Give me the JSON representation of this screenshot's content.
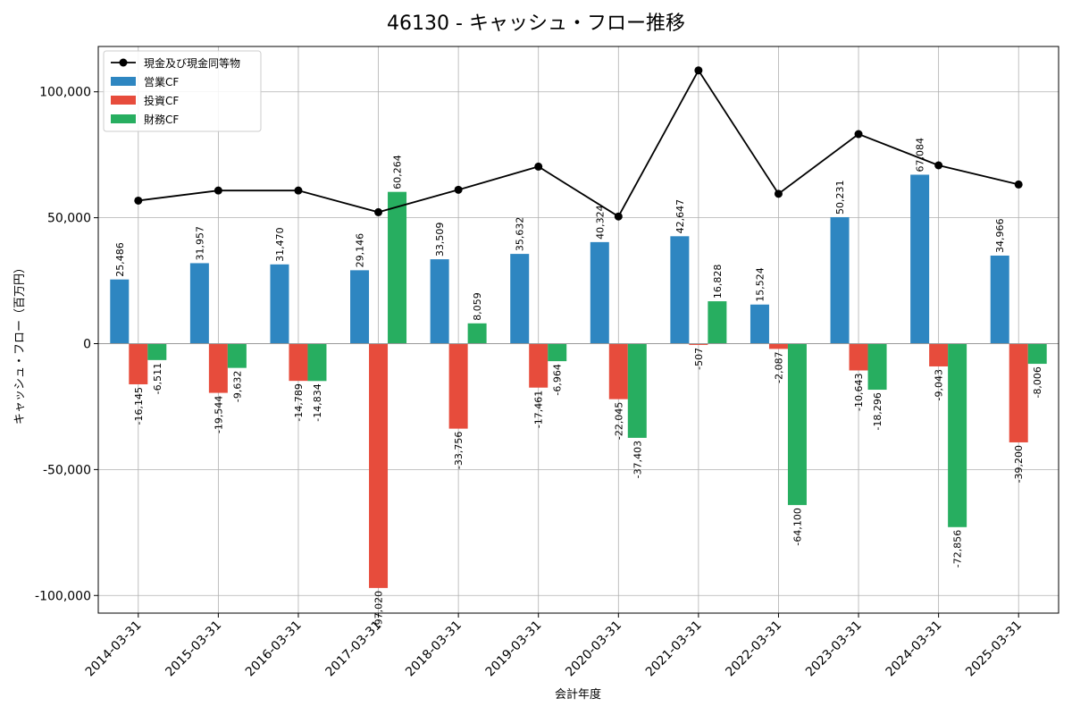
{
  "chart_data": {
    "type": "bar",
    "title": "46130 - キャッシュ・フロー推移",
    "xlabel": "会計年度",
    "ylabel": "キャッシュ・フロー（百万円）",
    "ylim": [
      -107000,
      118000
    ],
    "yticks": [
      -100000,
      -50000,
      0,
      50000,
      100000
    ],
    "ytick_labels": [
      "-100,000",
      "-50,000",
      "0",
      "50,000",
      "100,000"
    ],
    "grid": true,
    "legend_position": "top-left",
    "categories": [
      "2014-03-31",
      "2015-03-31",
      "2016-03-31",
      "2017-03-31",
      "2018-03-31",
      "2019-03-31",
      "2020-03-31",
      "2021-03-31",
      "2022-03-31",
      "2023-03-31",
      "2024-03-31",
      "2025-03-31"
    ],
    "series": [
      {
        "name": "営業CF",
        "kind": "bar",
        "color": "#2e86c1",
        "values": [
          25486,
          31957,
          31470,
          29146,
          33509,
          35632,
          40324,
          42647,
          15524,
          50231,
          67084,
          34966
        ],
        "labels": [
          "25,486",
          "31,957",
          "31,470",
          "29,146",
          "33,509",
          "35,632",
          "40,324",
          "42,647",
          "15,524",
          "50,231",
          "67,084",
          "34,966"
        ]
      },
      {
        "name": "投資CF",
        "kind": "bar",
        "color": "#e74c3c",
        "values": [
          -16145,
          -19544,
          -14789,
          -97020,
          -33756,
          -17461,
          -22045,
          -507,
          -2087,
          -10643,
          -9043,
          -39200
        ],
        "labels": [
          "-16,145",
          "-19,544",
          "-14,789",
          "-97,020",
          "-33,756",
          "-17,461",
          "-22,045",
          "-507",
          "-2,087",
          "-10,643",
          "-9,043",
          "-39,200"
        ]
      },
      {
        "name": "財務CF",
        "kind": "bar",
        "color": "#27ae60",
        "values": [
          -6511,
          -9632,
          -14834,
          60264,
          8059,
          -6964,
          -37403,
          16828,
          -64100,
          -18296,
          -72856,
          -8006
        ],
        "labels": [
          "-6,511",
          "-9,632",
          "-14,834",
          "60,264",
          "8,059",
          "-6,964",
          "-37,403",
          "16,828",
          "-64,100",
          "-18,296",
          "-72,856",
          "-8,006"
        ]
      },
      {
        "name": "現金及び現金同等物",
        "kind": "line",
        "color": "#000000",
        "values": [
          56800,
          60800,
          60800,
          52200,
          61100,
          70300,
          50500,
          108500,
          59500,
          83200,
          70800,
          63200
        ]
      }
    ]
  }
}
